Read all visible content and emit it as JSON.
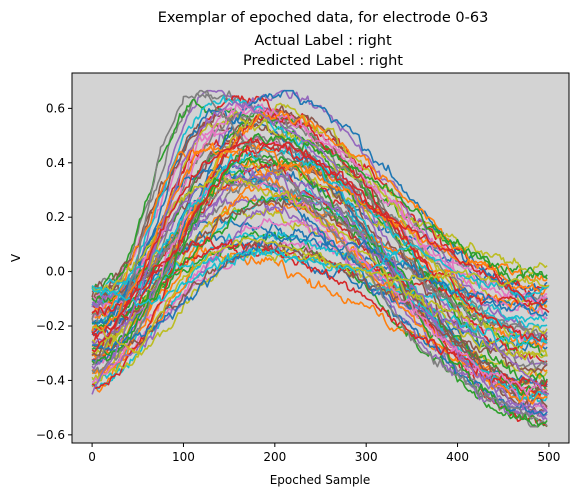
{
  "chart_data": {
    "type": "line",
    "title_lines": [
      "Exemplar of epoched data, for electrode 0-63",
      "Actual Label : right",
      "Predicted Label : right"
    ],
    "xlabel": "Epoched Sample",
    "ylabel": "V",
    "xlim": [
      -22,
      522
    ],
    "ylim": [
      -0.63,
      0.73
    ],
    "xticks": [
      {
        "value": 0,
        "label": "0"
      },
      {
        "value": 100,
        "label": "100"
      },
      {
        "value": 200,
        "label": "200"
      },
      {
        "value": 300,
        "label": "300"
      },
      {
        "value": 400,
        "label": "400"
      },
      {
        "value": 500,
        "label": "500"
      }
    ],
    "yticks": [
      {
        "value": -0.6,
        "label": "−0.6"
      },
      {
        "value": -0.4,
        "label": "−0.4"
      },
      {
        "value": -0.2,
        "label": "−0.2"
      },
      {
        "value": 0.0,
        "label": "0.0"
      },
      {
        "value": 0.2,
        "label": "0.2"
      },
      {
        "value": 0.4,
        "label": "0.4"
      },
      {
        "value": 0.6,
        "label": "0.6"
      }
    ],
    "grid": false,
    "legend": "none",
    "series_count": 64,
    "samples_per_series": 500,
    "plot_background": "#d3d3d3",
    "palette": [
      "#1f77b4",
      "#ff7f0e",
      "#2ca02c",
      "#d62728",
      "#9467bd",
      "#8c564b",
      "#e377c2",
      "#7f7f7f",
      "#bcbd22",
      "#17becf"
    ],
    "series_envelope": {
      "x": [
        0,
        50,
        100,
        150,
        200,
        250,
        300,
        350,
        400,
        450,
        500
      ],
      "start_range": [
        -0.46,
        -0.05
      ],
      "peak_range": [
        0.05,
        0.66
      ],
      "end_range": [
        -0.56,
        0.02
      ]
    },
    "representative_series": [
      {
        "color": "#7f7f7f",
        "x": [
          0,
          25,
          50,
          75,
          100,
          125,
          150,
          175,
          200,
          225,
          250,
          275,
          300,
          325,
          350,
          375,
          400,
          425,
          450,
          475,
          490
        ],
        "y": [
          -0.35,
          -0.22,
          0.05,
          0.45,
          0.64,
          0.65,
          0.55,
          0.45,
          0.38,
          0.3,
          0.2,
          0.1,
          0.0,
          -0.12,
          -0.25,
          -0.33,
          -0.38,
          -0.45,
          -0.48,
          -0.52,
          -0.55
        ]
      },
      {
        "color": "#9467bd",
        "x": [
          0,
          25,
          50,
          75,
          100,
          125,
          150,
          175,
          200,
          225,
          250,
          275,
          300,
          325,
          350,
          375,
          400,
          425,
          450,
          475,
          500
        ],
        "y": [
          -0.45,
          -0.3,
          -0.1,
          0.15,
          0.4,
          0.55,
          0.62,
          0.6,
          0.55,
          0.5,
          0.45,
          0.35,
          0.2,
          0.05,
          -0.05,
          -0.15,
          -0.2,
          -0.25,
          -0.3,
          -0.38,
          -0.45
        ]
      },
      {
        "color": "#17becf",
        "x": [
          0,
          25,
          50,
          75,
          100,
          125,
          150,
          175,
          200,
          225,
          250,
          275,
          300,
          325,
          350,
          375,
          400,
          425,
          450,
          475,
          500
        ],
        "y": [
          -0.05,
          -0.08,
          -0.12,
          -0.1,
          -0.05,
          0.0,
          0.05,
          0.08,
          0.07,
          0.05,
          0.03,
          0.02,
          0.0,
          0.05,
          0.1,
          0.05,
          0.0,
          -0.05,
          -0.05,
          -0.1,
          -0.05
        ]
      },
      {
        "color": "#d62728",
        "x": [
          0,
          25,
          50,
          75,
          100,
          125,
          150,
          175,
          200,
          225,
          250,
          275,
          300,
          325,
          350,
          375,
          400,
          425,
          450,
          475,
          500
        ],
        "y": [
          -0.3,
          -0.2,
          -0.05,
          0.15,
          0.3,
          0.4,
          0.45,
          0.48,
          0.47,
          0.45,
          0.4,
          0.35,
          0.25,
          0.2,
          0.15,
          0.1,
          0.05,
          0.0,
          -0.05,
          -0.1,
          -0.15
        ]
      },
      {
        "color": "#bcbd22",
        "x": [
          0,
          25,
          50,
          75,
          100,
          125,
          150,
          175,
          200,
          225,
          250,
          275,
          300,
          325,
          350,
          375,
          400,
          425,
          450,
          475,
          500
        ],
        "y": [
          -0.2,
          -0.25,
          -0.3,
          -0.15,
          -0.02,
          0.05,
          0.1,
          0.12,
          0.1,
          0.08,
          0.05,
          0.03,
          0.0,
          -0.02,
          -0.03,
          -0.02,
          0.0,
          -0.02,
          -0.05,
          -0.03,
          -0.05
        ]
      }
    ]
  }
}
